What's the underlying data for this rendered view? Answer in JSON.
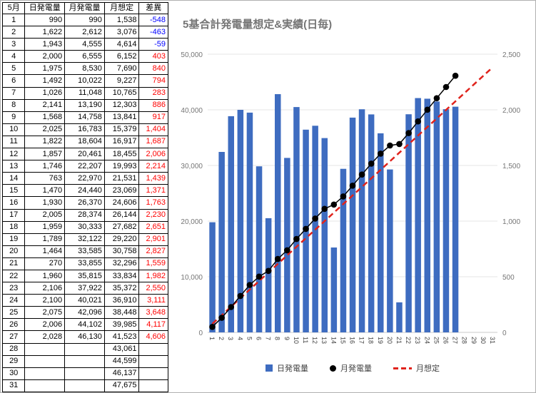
{
  "table": {
    "headers": [
      "5月",
      "日発電量",
      "月発電量",
      "月想定",
      "差異"
    ],
    "diff_negative_color": "#0000ff",
    "diff_positive_color": "#ff0000",
    "rows": [
      [
        "1",
        "990",
        "990",
        "1,538",
        "-548"
      ],
      [
        "2",
        "1,622",
        "2,612",
        "3,076",
        "-463"
      ],
      [
        "3",
        "1,943",
        "4,555",
        "4,614",
        "-59"
      ],
      [
        "4",
        "2,000",
        "6,555",
        "6,152",
        "403"
      ],
      [
        "5",
        "1,975",
        "8,530",
        "7,690",
        "840"
      ],
      [
        "6",
        "1,492",
        "10,022",
        "9,227",
        "794"
      ],
      [
        "7",
        "1,026",
        "11,048",
        "10,765",
        "283"
      ],
      [
        "8",
        "2,141",
        "13,190",
        "12,303",
        "886"
      ],
      [
        "9",
        "1,568",
        "14,758",
        "13,841",
        "917"
      ],
      [
        "10",
        "2,025",
        "16,783",
        "15,379",
        "1,404"
      ],
      [
        "11",
        "1,822",
        "18,604",
        "16,917",
        "1,687"
      ],
      [
        "12",
        "1,857",
        "20,461",
        "18,455",
        "2,006"
      ],
      [
        "13",
        "1,746",
        "22,207",
        "19,993",
        "2,214"
      ],
      [
        "14",
        "763",
        "22,970",
        "21,531",
        "1,439"
      ],
      [
        "15",
        "1,470",
        "24,440",
        "23,069",
        "1,371"
      ],
      [
        "16",
        "1,930",
        "26,370",
        "24,606",
        "1,763"
      ],
      [
        "17",
        "2,005",
        "28,374",
        "26,144",
        "2,230"
      ],
      [
        "18",
        "1,959",
        "30,333",
        "27,682",
        "2,651"
      ],
      [
        "19",
        "1,789",
        "32,122",
        "29,220",
        "2,901"
      ],
      [
        "20",
        "1,464",
        "33,585",
        "30,758",
        "2,827"
      ],
      [
        "21",
        "270",
        "33,855",
        "32,296",
        "1,559"
      ],
      [
        "22",
        "1,960",
        "35,815",
        "33,834",
        "1,982"
      ],
      [
        "23",
        "2,106",
        "37,922",
        "35,372",
        "2,550"
      ],
      [
        "24",
        "2,100",
        "40,021",
        "36,910",
        "3,111"
      ],
      [
        "25",
        "2,075",
        "42,096",
        "38,448",
        "3,648"
      ],
      [
        "26",
        "2,006",
        "44,102",
        "39,985",
        "4,117"
      ],
      [
        "27",
        "2,028",
        "46,130",
        "41,523",
        "4,606"
      ],
      [
        "28",
        "",
        "",
        "43,061",
        ""
      ],
      [
        "29",
        "",
        "",
        "44,599",
        ""
      ],
      [
        "30",
        "",
        "",
        "46,137",
        ""
      ],
      [
        "31",
        "",
        "",
        "47,675",
        ""
      ]
    ]
  },
  "chart_data": {
    "type": "combo",
    "title": "5基合計発電量想定&実績(日毎)",
    "categories": [
      1,
      2,
      3,
      4,
      5,
      6,
      7,
      8,
      9,
      10,
      11,
      12,
      13,
      14,
      15,
      16,
      17,
      18,
      19,
      20,
      21,
      22,
      23,
      24,
      25,
      26,
      27,
      28,
      29,
      30,
      31
    ],
    "series": [
      {
        "name": "日発電量",
        "type": "bar",
        "axis": "right",
        "color": "#3e6cc0",
        "values": [
          990,
          1622,
          1943,
          2000,
          1975,
          1492,
          1026,
          2141,
          1568,
          2025,
          1822,
          1857,
          1746,
          763,
          1470,
          1930,
          2005,
          1959,
          1789,
          1464,
          270,
          1960,
          2106,
          2100,
          2075,
          2006,
          2028,
          null,
          null,
          null,
          null
        ]
      },
      {
        "name": "月発電量",
        "type": "line",
        "axis": "left",
        "color": "#000000",
        "values": [
          990,
          2612,
          4555,
          6555,
          8530,
          10022,
          11048,
          13190,
          14758,
          16783,
          18604,
          20461,
          22207,
          22970,
          24440,
          26370,
          28374,
          30333,
          32122,
          33585,
          33855,
          35815,
          37922,
          40021,
          42096,
          44102,
          46130,
          null,
          null,
          null,
          null
        ]
      },
      {
        "name": "月想定",
        "type": "dashed-line",
        "axis": "left",
        "color": "#e0231c",
        "values": [
          1538,
          3076,
          4614,
          6152,
          7690,
          9227,
          10765,
          12303,
          13841,
          15379,
          16917,
          18455,
          19993,
          21531,
          23069,
          24606,
          26144,
          27682,
          29220,
          30758,
          32296,
          33834,
          35372,
          36910,
          38448,
          39985,
          41523,
          43061,
          44599,
          46137,
          47675
        ]
      }
    ],
    "left_axis": {
      "min": 0,
      "max": 50000,
      "step": 10000,
      "ticks": [
        "0",
        "10,000",
        "20,000",
        "30,000",
        "40,000",
        "50,000"
      ]
    },
    "right_axis": {
      "min": 0,
      "max": 2500,
      "step": 500,
      "ticks": [
        "0",
        "500",
        "1,000",
        "1,500",
        "2,000",
        "2,500"
      ]
    },
    "grid": true,
    "legend_position": "bottom"
  }
}
